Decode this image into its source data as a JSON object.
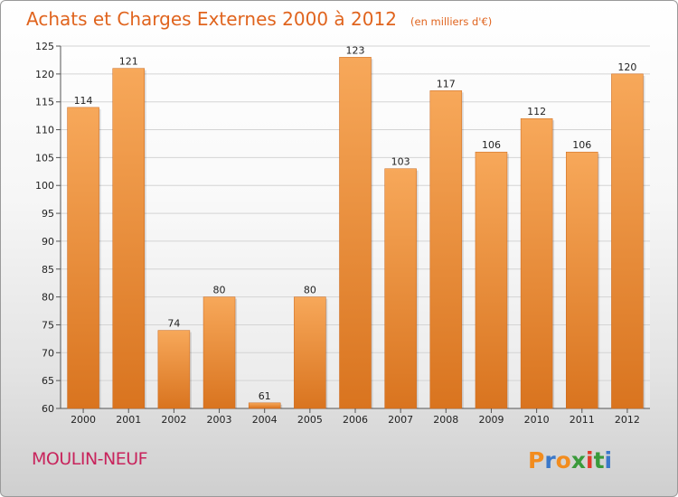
{
  "chart_data": {
    "type": "bar",
    "title": "Achats et Charges Externes 2000 à 2012",
    "subtitle": "(en milliers d'€)",
    "categories": [
      "2000",
      "2001",
      "2002",
      "2003",
      "2004",
      "2005",
      "2006",
      "2007",
      "2008",
      "2009",
      "2010",
      "2011",
      "2012"
    ],
    "values": [
      114,
      121,
      74,
      80,
      61,
      80,
      123,
      103,
      117,
      106,
      112,
      106,
      120
    ],
    "xlabel": "",
    "ylabel": "",
    "ylim": [
      60,
      125
    ],
    "yticks": [
      60,
      65,
      70,
      75,
      80,
      85,
      90,
      95,
      100,
      105,
      110,
      115,
      120,
      125
    ],
    "grid": true,
    "legend": "none",
    "bar_color_light": "#f7a85a",
    "bar_color_dark": "#d9741f"
  },
  "commune": "MOULIN-NEUF",
  "brand": {
    "letters": [
      "P",
      "r",
      "o",
      "x",
      "i",
      "t",
      "i"
    ],
    "colors": [
      "#f28c1e",
      "#3a78c9",
      "#f28c1e",
      "#3a9a3a",
      "#e23a2a",
      "#3a9a3a",
      "#3a78c9"
    ]
  }
}
